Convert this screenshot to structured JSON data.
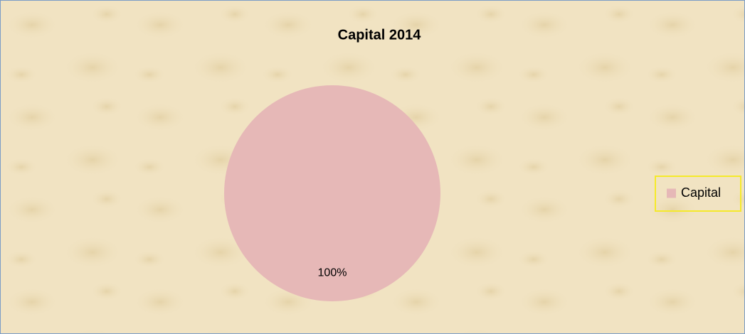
{
  "chart_data": {
    "type": "pie",
    "title": "Capital 2014",
    "categories": [
      "Capital"
    ],
    "values": [
      100
    ],
    "value_labels": [
      "100%"
    ],
    "colors": [
      "#e6b8b7"
    ],
    "legend": "right"
  }
}
